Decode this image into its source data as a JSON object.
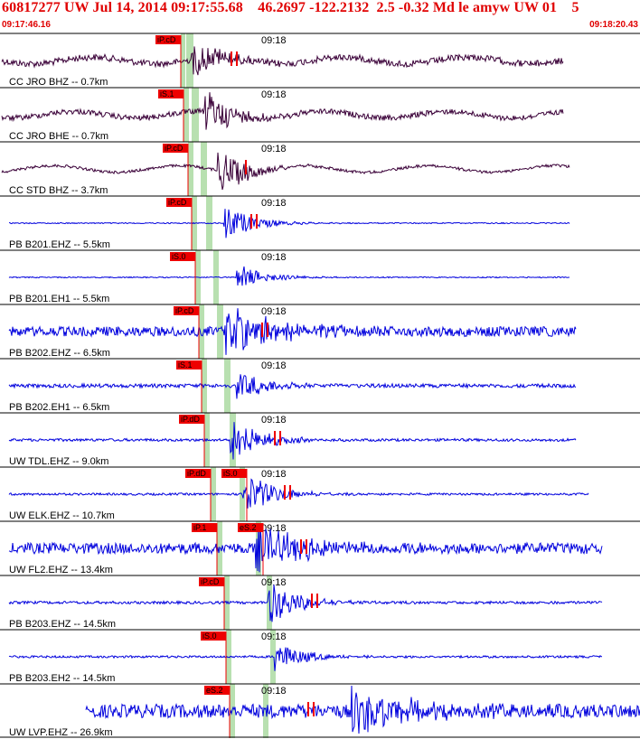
{
  "header": {
    "title": "60817277 UW Jul 14, 2014 09:17:55.68    46.2697 -122.2132  2.5 -0.32 Md le amyw UW 01    5",
    "start_time": "09:17:46.16",
    "end_time": "09:18:20.43"
  },
  "colors": {
    "header_text": "#e00000",
    "trace_dark": "#3a0038",
    "trace_blue": "#0000dd",
    "pick_box": "#ee0000",
    "arrival_band": "#b8e0b0"
  },
  "time_mark_label": "09:18",
  "traces": [
    {
      "label": "CC JRO BHZ -- 0.7km",
      "color": "dark",
      "amp": 0.35,
      "noise": 0.12,
      "onset": 0.3,
      "end": 0.88,
      "start": 0.0,
      "picks": [
        {
          "text": "iP.cD"
        }
      ],
      "tick_marks": 2
    },
    {
      "label": "CC JRO BHE -- 0.7km",
      "color": "dark",
      "amp": 0.45,
      "noise": 0.1,
      "onset": 0.32,
      "end": 0.88,
      "start": 0.0,
      "picks": [
        {
          "text": "iS.1"
        }
      ],
      "tick_marks": 0
    },
    {
      "label": "CC STD BHZ -- 3.7km",
      "color": "dark",
      "amp": 0.45,
      "noise": 0.05,
      "onset": 0.34,
      "end": 0.89,
      "start": 0.0,
      "picks": [
        {
          "text": "iP.cD"
        }
      ],
      "tick_marks": 1
    },
    {
      "label": "PB B201.EHZ -- 5.5km",
      "color": "blue",
      "amp": 0.35,
      "noise": 0.02,
      "onset": 0.35,
      "end": 0.89,
      "start": 0.0,
      "picks": [
        {
          "text": "iP.cD"
        }
      ],
      "tick_marks": 2
    },
    {
      "label": "PB B201.EH1 -- 5.5km",
      "color": "blue",
      "amp": 0.25,
      "noise": 0.02,
      "onset": 0.37,
      "end": 0.89,
      "start": 0.0,
      "picks": [
        {
          "text": "iS.0"
        }
      ],
      "tick_marks": 0
    },
    {
      "label": "PB B202.EHZ -- 6.5km",
      "color": "blue",
      "amp": 0.45,
      "noise": 0.18,
      "onset": 0.35,
      "end": 0.9,
      "start": 0.0,
      "picks": [
        {
          "text": "iP.cD"
        }
      ],
      "tick_marks": 2
    },
    {
      "label": "PB B202.EH1 -- 6.5km",
      "color": "blue",
      "amp": 0.3,
      "noise": 0.07,
      "onset": 0.37,
      "end": 0.9,
      "start": 0.0,
      "picks": [
        {
          "text": "iS.1"
        }
      ],
      "tick_marks": 0
    },
    {
      "label": "UW TDL.EHZ -- 9.0km",
      "color": "blue",
      "amp": 0.45,
      "noise": 0.05,
      "onset": 0.36,
      "end": 0.9,
      "start": 0.0,
      "picks": [
        {
          "text": "iP.dD"
        }
      ],
      "tick_marks": 2
    },
    {
      "label": "UW ELK.EHZ -- 10.7km",
      "color": "blue",
      "amp": 0.45,
      "noise": 0.04,
      "onset": 0.38,
      "end": 0.92,
      "start": 0.0,
      "picks": [
        {
          "text": "iP.dD"
        },
        {
          "text": "iS.0"
        }
      ],
      "tick_marks": 2
    },
    {
      "label": "UW FL2.EHZ -- 13.4km",
      "color": "blue",
      "amp": 0.4,
      "noise": 0.2,
      "onset": 0.4,
      "end": 0.94,
      "start": 0.0,
      "picks": [
        {
          "text": "iP.1"
        },
        {
          "text": "eS.2"
        }
      ],
      "tick_marks": 2
    },
    {
      "label": "PB B203.EHZ -- 14.5km",
      "color": "blue",
      "amp": 0.45,
      "noise": 0.05,
      "onset": 0.42,
      "end": 0.94,
      "start": 0.0,
      "picks": [
        {
          "text": "iP.cD"
        }
      ],
      "tick_marks": 2
    },
    {
      "label": "PB B203.EH2 -- 14.5km",
      "color": "blue",
      "amp": 0.3,
      "noise": 0.04,
      "onset": 0.43,
      "end": 0.94,
      "start": 0.0,
      "picks": [
        {
          "text": "iS.0"
        }
      ],
      "tick_marks": 0
    },
    {
      "label": "UW LVP.EHZ -- 26.9km",
      "color": "blue",
      "amp": 0.45,
      "noise": 0.25,
      "onset": 0.55,
      "end": 1.0,
      "start": 0.12,
      "picks": [
        {
          "text": "eS.2"
        }
      ],
      "tick_marks": 2
    }
  ]
}
